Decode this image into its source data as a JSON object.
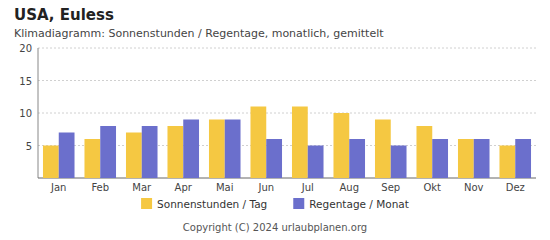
{
  "chart_data": {
    "type": "bar",
    "title": "USA,  Euless",
    "subtitle": "Klimadiagramm: Sonnenstunden / Regentage, monatlich, gemittelt",
    "categories": [
      "Jan",
      "Feb",
      "Mar",
      "Apr",
      "Mai",
      "Jun",
      "Jul",
      "Aug",
      "Sep",
      "Okt",
      "Nov",
      "Dez"
    ],
    "series": [
      {
        "name": "Sonnenstunden / Tag",
        "color": "#F5C842",
        "values": [
          5,
          6,
          7,
          8,
          9,
          11,
          11,
          10,
          9,
          8,
          6,
          5
        ]
      },
      {
        "name": "Regentage / Monat",
        "color": "#6B6FCC",
        "values": [
          7,
          8,
          8,
          9,
          9,
          6,
          5,
          6,
          5,
          6,
          6,
          6
        ]
      }
    ],
    "ylim": [
      0,
      20
    ],
    "yticks": [
      5,
      10,
      15,
      20
    ],
    "grid": true,
    "legend": "bottom",
    "annotations": [
      "Copyright (C) 2024 urlaubplanen.org"
    ]
  }
}
